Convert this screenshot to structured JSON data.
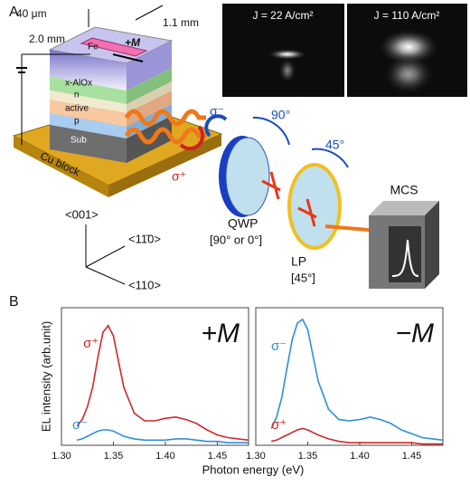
{
  "panel_a": {
    "label": "A",
    "dim_40": "40 μm",
    "dim_20": "2.0 mm",
    "dim_11": "1.1 mm",
    "fe": "Fe",
    "magnet": "+M",
    "layers": [
      "x-AlOx",
      "n",
      "active",
      "p",
      "Sub"
    ],
    "cu": "Cu block",
    "sigma_plus": "σ⁺",
    "sigma_minus": "σ⁻",
    "angle_90": "90°",
    "angle_45": "45°",
    "qwp": "QWP",
    "qwp_note": "[90° or 0°]",
    "lp": "LP",
    "lp_note": "[45°]",
    "mcs": "MCS",
    "axis_001": "<001>",
    "axis_1m10": "<11̄0>",
    "axis_110": "<110>",
    "photo_1": "J = 22 A/cm²",
    "photo_2": "J = 110 A/cm²"
  },
  "panel_b": {
    "label": "B"
  },
  "chart_data": [
    {
      "type": "line",
      "annotation": "+M",
      "xlabel": "Photon energy (eV)",
      "ylabel": "EL intensity (arb.unit)",
      "x": [
        1.315,
        1.32,
        1.325,
        1.33,
        1.335,
        1.34,
        1.345,
        1.35,
        1.355,
        1.36,
        1.37,
        1.38,
        1.39,
        1.4,
        1.41,
        1.42,
        1.43,
        1.44,
        1.45,
        1.46,
        1.47,
        1.48
      ],
      "series": [
        {
          "name": "σ⁺",
          "color": "#d02828",
          "values": [
            0.15,
            0.2,
            0.3,
            0.45,
            0.68,
            0.88,
            0.93,
            0.85,
            0.65,
            0.45,
            0.25,
            0.19,
            0.19,
            0.21,
            0.22,
            0.2,
            0.17,
            0.12,
            0.08,
            0.06,
            0.05,
            0.04
          ]
        },
        {
          "name": "σ⁻",
          "color": "#2e8fd6",
          "values": [
            0.04,
            0.05,
            0.07,
            0.09,
            0.11,
            0.12,
            0.12,
            0.11,
            0.09,
            0.07,
            0.05,
            0.04,
            0.04,
            0.04,
            0.05,
            0.05,
            0.04,
            0.03,
            0.03,
            0.02,
            0.02,
            0.02
          ]
        }
      ],
      "xlim": [
        1.3,
        1.48
      ],
      "ylim": [
        0,
        1
      ],
      "xticks": [
        {
          "value": 1.3,
          "label": "1.30"
        },
        1.35,
        {
          "value": 1.4,
          "label": "1.40"
        },
        1.45
      ]
    },
    {
      "type": "line",
      "annotation": "−M",
      "x": [
        1.315,
        1.32,
        1.325,
        1.33,
        1.335,
        1.34,
        1.345,
        1.35,
        1.355,
        1.36,
        1.37,
        1.38,
        1.39,
        1.4,
        1.41,
        1.42,
        1.43,
        1.44,
        1.45,
        1.46,
        1.47,
        1.48
      ],
      "series": [
        {
          "name": "σ⁻",
          "color": "#2e8fd6",
          "values": [
            0.13,
            0.22,
            0.37,
            0.6,
            0.82,
            0.95,
            0.98,
            0.9,
            0.7,
            0.5,
            0.28,
            0.2,
            0.19,
            0.2,
            0.22,
            0.2,
            0.17,
            0.12,
            0.09,
            0.06,
            0.05,
            0.04
          ]
        },
        {
          "name": "σ⁺",
          "color": "#d02828",
          "values": [
            0.03,
            0.04,
            0.06,
            0.08,
            0.1,
            0.12,
            0.13,
            0.12,
            0.1,
            0.08,
            0.05,
            0.03,
            0.02,
            0.02,
            0.02,
            0.02,
            0.02,
            0.02,
            0.02,
            0.01,
            0.01,
            0.01
          ]
        }
      ],
      "xlim": [
        1.3,
        1.48
      ],
      "ylim": [
        0,
        1
      ],
      "xticks": [
        {
          "value": 1.3,
          "label": "1.30"
        },
        1.35,
        {
          "value": 1.4,
          "label": "1.40"
        },
        1.45
      ]
    }
  ]
}
